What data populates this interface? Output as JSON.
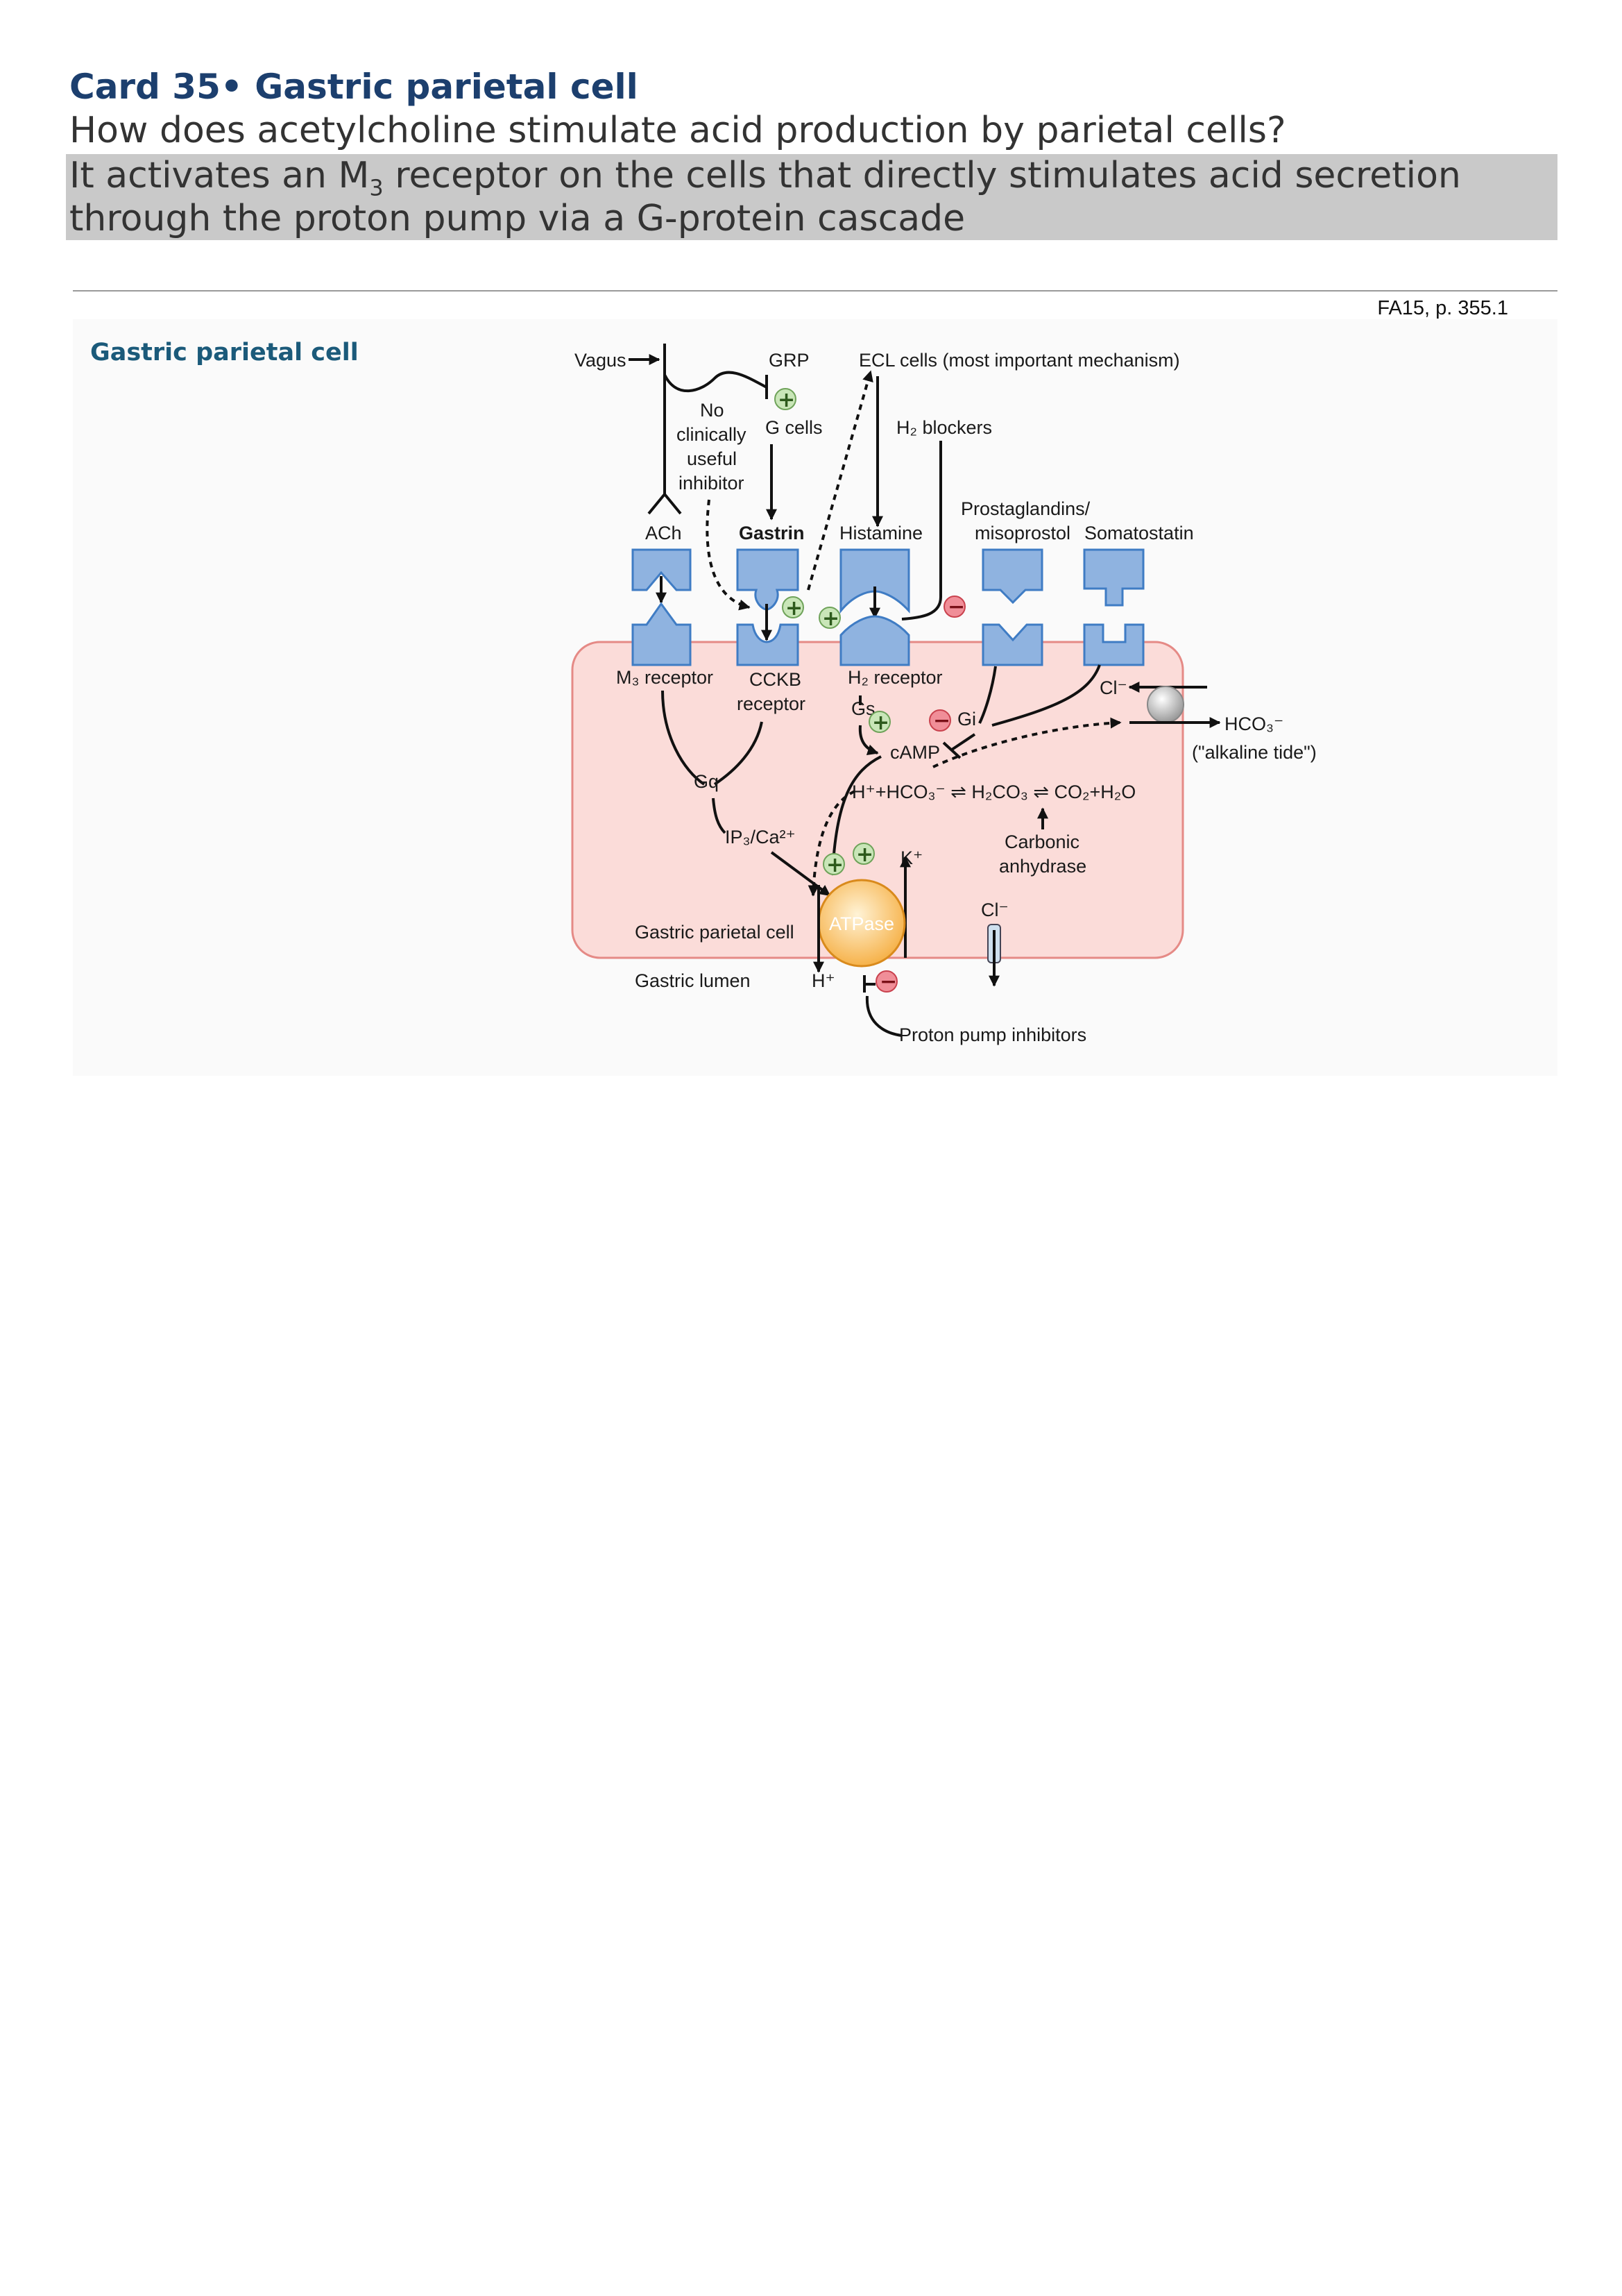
{
  "card": {
    "title": "Card 35• Gastric parietal cell",
    "question": "How does acetylcholine stimulate acid production by parietal cells?",
    "answer": {
      "part1": "It activates an M",
      "subscript": "3",
      "part2": " receptor on the cells that directly stimulates acid secretion through the proton pump via a G-protein cascade"
    }
  },
  "reference": "FA15, p. 355.1",
  "figure": {
    "title": "Gastric parietal cell",
    "labels": {
      "vagus": "Vagus",
      "grp": "GRP",
      "ecl": "ECL cells (most important mechanism)",
      "no_inhibitor": [
        "No",
        "clinically",
        "useful",
        "inhibitor"
      ],
      "g_cells": "G cells",
      "h2_blockers": "H₂ blockers",
      "prostaglandins": "Prostaglandins/",
      "misoprostol": "misoprostol",
      "ach": "ACh",
      "gastrin": "Gastrin",
      "histamine": "Histamine",
      "somatostatin": "Somatostatin",
      "m3_receptor": "M₃ receptor",
      "cckb_receptor": [
        "CCKB",
        "receptor"
      ],
      "h2_receptor": "H₂ receptor",
      "gs": "Gs",
      "gi": "Gi",
      "gq": "Gq",
      "camp": "cAMP",
      "cl_top": "Cl⁻",
      "hco3": "HCO₃⁻",
      "alkaline_tide": "(\"alkaline tide\")",
      "reaction": "H⁺+HCO₃⁻ ⇌ H₂CO₃ ⇌ CO₂+H₂O",
      "ip3": "IP₃/Ca²⁺",
      "k_plus": "K⁺",
      "carbonic": "Carbonic",
      "anhydrase": "anhydrase",
      "cl_bottom": "Cl⁻",
      "parietal_cell": "Gastric parietal cell",
      "atpase": "ATPase",
      "lumen": "Gastric lumen",
      "h_plus": "H⁺",
      "ppi": "Proton pump inhibitors"
    },
    "colors": {
      "cell_fill": "#fbdcd9",
      "cell_border": "#e58a86",
      "receptor": "#8fb3e0",
      "atpase": "#f6b24a",
      "stimulatory": "#c9e6b8",
      "inhibitory": "#f08e98"
    }
  }
}
